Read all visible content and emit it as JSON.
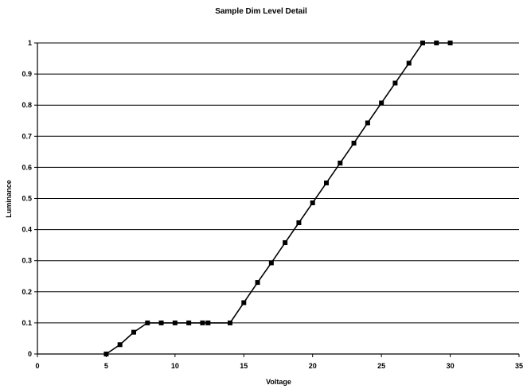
{
  "chart_data": {
    "type": "line",
    "title": "Sample Dim Level Detail",
    "xlabel": "Voltage",
    "ylabel": "Luminance",
    "xlim": [
      0,
      35
    ],
    "ylim": [
      0,
      1
    ],
    "xticks": [
      0,
      5,
      10,
      15,
      20,
      25,
      30,
      35
    ],
    "yticks": [
      0,
      0.1,
      0.2,
      0.3,
      0.4,
      0.5,
      0.6,
      0.7,
      0.8,
      0.9,
      1
    ],
    "grid": "horizontal",
    "legend": "none",
    "series": [
      {
        "color": "#000000",
        "marker": "square",
        "points": [
          {
            "x": 5,
            "y": 0
          },
          {
            "x": 6,
            "y": 0.03
          },
          {
            "x": 7,
            "y": 0.07
          },
          {
            "x": 8,
            "y": 0.1
          },
          {
            "x": 9,
            "y": 0.1
          },
          {
            "x": 10,
            "y": 0.1
          },
          {
            "x": 11,
            "y": 0.1
          },
          {
            "x": 12,
            "y": 0.1
          },
          {
            "x": 12.4,
            "y": 0.1
          },
          {
            "x": 14,
            "y": 0.1
          },
          {
            "x": 15,
            "y": 0.165
          },
          {
            "x": 16,
            "y": 0.23
          },
          {
            "x": 17,
            "y": 0.293
          },
          {
            "x": 18,
            "y": 0.358
          },
          {
            "x": 19,
            "y": 0.422
          },
          {
            "x": 20,
            "y": 0.486
          },
          {
            "x": 21,
            "y": 0.55
          },
          {
            "x": 22,
            "y": 0.614
          },
          {
            "x": 23,
            "y": 0.678
          },
          {
            "x": 24,
            "y": 0.743
          },
          {
            "x": 25,
            "y": 0.807
          },
          {
            "x": 26,
            "y": 0.871
          },
          {
            "x": 27,
            "y": 0.935
          },
          {
            "x": 28,
            "y": 1
          },
          {
            "x": 29,
            "y": 1
          },
          {
            "x": 30,
            "y": 1
          }
        ]
      }
    ]
  }
}
